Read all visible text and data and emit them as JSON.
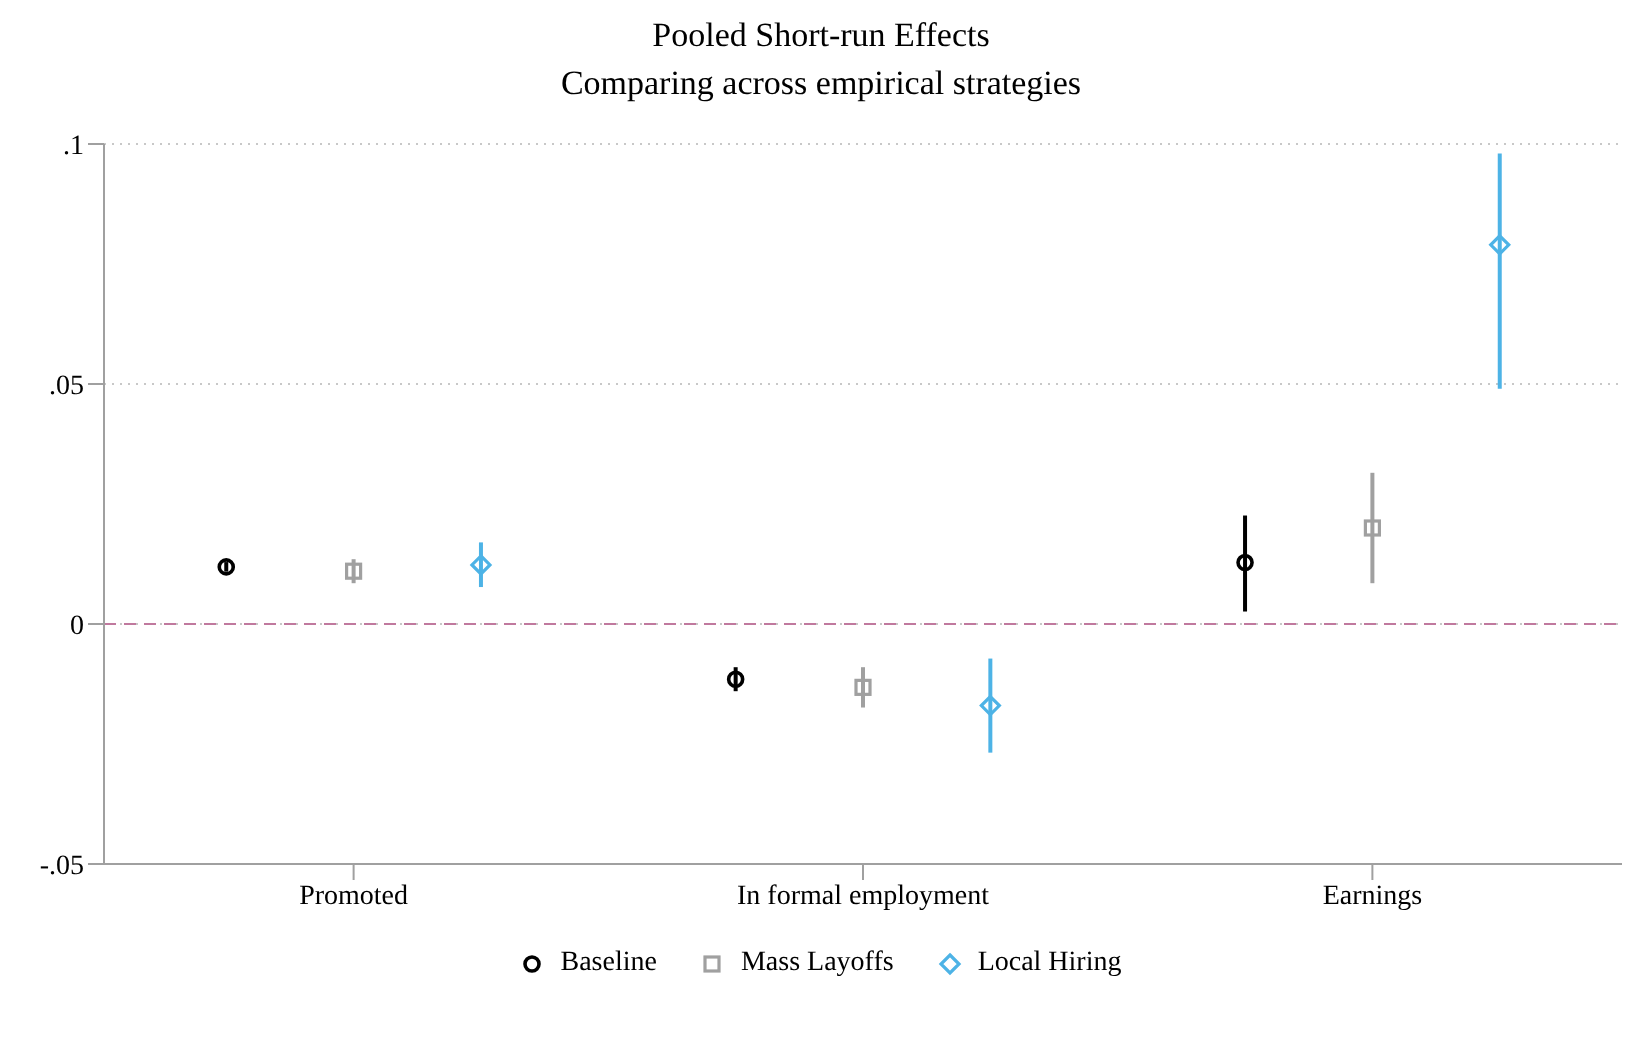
{
  "chart_data": {
    "type": "scatter",
    "title": "Pooled Short-run Effects",
    "subtitle": "Comparing across empirical strategies",
    "categories": [
      "Promoted",
      "In formal employment",
      "Earnings"
    ],
    "series": [
      {
        "name": "Baseline",
        "color": "#000000",
        "marker": "circle",
        "values": [
          0.0119,
          -0.0115,
          0.0128
        ],
        "errors": [
          [
            0.0109,
            0.0129
          ],
          [
            -0.014,
            -0.009
          ],
          [
            0.0026,
            0.0226
          ]
        ]
      },
      {
        "name": "Mass Layoffs",
        "color": "#a0a0a0",
        "marker": "square",
        "values": [
          0.011,
          -0.0132,
          0.02
        ],
        "errors": [
          [
            0.0085,
            0.0135
          ],
          [
            -0.0174,
            -0.009
          ],
          [
            0.0085,
            0.0315
          ]
        ]
      },
      {
        "name": "Local Hiring",
        "color": "#4db3e6",
        "marker": "diamond",
        "values": [
          0.0123,
          -0.017,
          0.079
        ],
        "errors": [
          [
            0.0077,
            0.017
          ],
          [
            -0.0268,
            -0.0072
          ],
          [
            0.049,
            0.098
          ]
        ]
      }
    ],
    "ylim": [
      -0.05,
      0.1
    ],
    "yticks": [
      {
        "value": -0.05,
        "label": "-.05"
      },
      {
        "value": 0,
        "label": "0"
      },
      {
        "value": 0.05,
        "label": ".05"
      },
      {
        "value": 0.1,
        "label": ".1"
      }
    ],
    "grid": "y",
    "legend": "bottom",
    "ref_lines": [
      {
        "axis": "y",
        "value": 0,
        "color": "#c0799e",
        "line_style": "dashed"
      }
    ]
  }
}
